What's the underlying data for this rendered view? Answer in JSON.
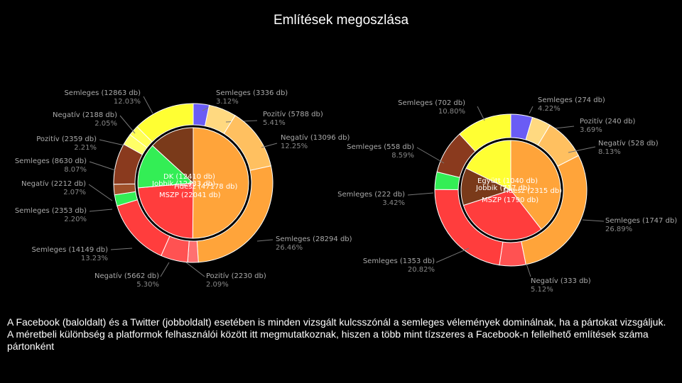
{
  "title": "Említések megoszlása",
  "caption": "A Facebook (baloldalt) és a Twitter (jobboldalt) esetében is minden vizsgált kulcsszónál a semleges vélemények dominálnak, ha a pártokat vizsgáljuk. A méretbeli  különbség a platformok felhasználói között itt megmutatkoznak, hiszen a több mint tízszeres a Facebook-n fellelhető említések száma pártonként",
  "colors": {
    "lmp": "#6a5cf5",
    "fidesz": "#ffa43a",
    "mszp": "#ff3d3d",
    "jobbik_green": "#33ee55",
    "jobbik_brown": "#8a3a1e",
    "egyutt": "#ffff33",
    "dk": "#7a3a1a"
  },
  "chart_data": [
    {
      "type": "sunburst",
      "platform": "Facebook",
      "inner": [
        {
          "label": "DK (12410 db)",
          "value": 12410,
          "color": "#7a3a1a"
        },
        {
          "label": "Jobbik (12433 db)",
          "value": 12433,
          "color": "#33ee55"
        },
        {
          "label": "Fidesz (47178 db)",
          "value": 47178,
          "color": "#ffa43a"
        },
        {
          "label": "MSZP (22041 db)",
          "value": 22041,
          "color": "#ff3d3d"
        }
      ],
      "outer": [
        {
          "label": "Semleges (3336 db)",
          "pct": "3.12%",
          "value": 3336,
          "color": "#6a5cf5"
        },
        {
          "label": "Pozitív (5788 db)",
          "pct": "5.41%",
          "value": 5788,
          "color": "#ffd980"
        },
        {
          "label": "Negatív (13096 db)",
          "pct": "12.25%",
          "value": 13096,
          "color": "#ffc060"
        },
        {
          "label": "Semleges (28294 db)",
          "pct": "26.46%",
          "value": 28294,
          "color": "#ffa43a"
        },
        {
          "label": "Pozitív (2230 db)",
          "pct": "2.09%",
          "value": 2230,
          "color": "#ff7070"
        },
        {
          "label": "Negatív (5662 db)",
          "pct": "5.30%",
          "value": 5662,
          "color": "#ff5252"
        },
        {
          "label": "Semleges (14149 db)",
          "pct": "13.23%",
          "value": 14149,
          "color": "#ff3d3d"
        },
        {
          "label": "Semleges (2353 db)",
          "pct": "2.20%",
          "value": 2353,
          "color": "#33ee55"
        },
        {
          "label": "Negatív (2212 db)",
          "pct": "2.07%",
          "value": 2212,
          "color": "#a0502a"
        },
        {
          "label": "Semleges (8630 db)",
          "pct": "8.07%",
          "value": 8630,
          "color": "#8a3a1e"
        },
        {
          "label": "Pozitív (2359 db)",
          "pct": "2.21%",
          "value": 2359,
          "color": "#ffff66"
        },
        {
          "label": "Negatív (2188 db)",
          "pct": "2.05%",
          "value": 2188,
          "color": "#ffff55"
        },
        {
          "label": "Semleges (12863 db)",
          "pct": "12.03%",
          "value": 12863,
          "color": "#ffff33"
        }
      ]
    },
    {
      "type": "sunburst",
      "platform": "Twitter",
      "inner": [
        {
          "label": "Együtt (1040 db)",
          "value": 1040,
          "color": "#ffff33"
        },
        {
          "label": "Jobbik (717 db)",
          "value": 717,
          "color": "#7a3a1a"
        },
        {
          "label": "Fidesz (2315 db)",
          "value": 2315,
          "color": "#ffa43a"
        },
        {
          "label": "MSZP (1790 db)",
          "value": 1790,
          "color": "#ff3d3d"
        }
      ],
      "outer": [
        {
          "label": "Semleges (274 db)",
          "pct": "4.22%",
          "value": 274,
          "color": "#6a5cf5"
        },
        {
          "label": "Pozitív (240 db)",
          "pct": "3.69%",
          "value": 240,
          "color": "#ffd980"
        },
        {
          "label": "Negatív (528 db)",
          "pct": "8.13%",
          "value": 528,
          "color": "#ffc060"
        },
        {
          "label": "Semleges (1747 db)",
          "pct": "26.89%",
          "value": 1747,
          "color": "#ffa43a"
        },
        {
          "label": "Negatív (333 db)",
          "pct": "5.12%",
          "value": 333,
          "color": "#ff5252"
        },
        {
          "label": "Semleges (1353 db)",
          "pct": "20.82%",
          "value": 1353,
          "color": "#ff3d3d"
        },
        {
          "label": "Semleges (222 db)",
          "pct": "3.42%",
          "value": 222,
          "color": "#33ee55"
        },
        {
          "label": "Semleges (558 db)",
          "pct": "8.59%",
          "value": 558,
          "color": "#8a3a1e"
        },
        {
          "label": "Semleges (702 db)",
          "pct": "10.80%",
          "value": 702,
          "color": "#ffff33"
        }
      ]
    }
  ]
}
